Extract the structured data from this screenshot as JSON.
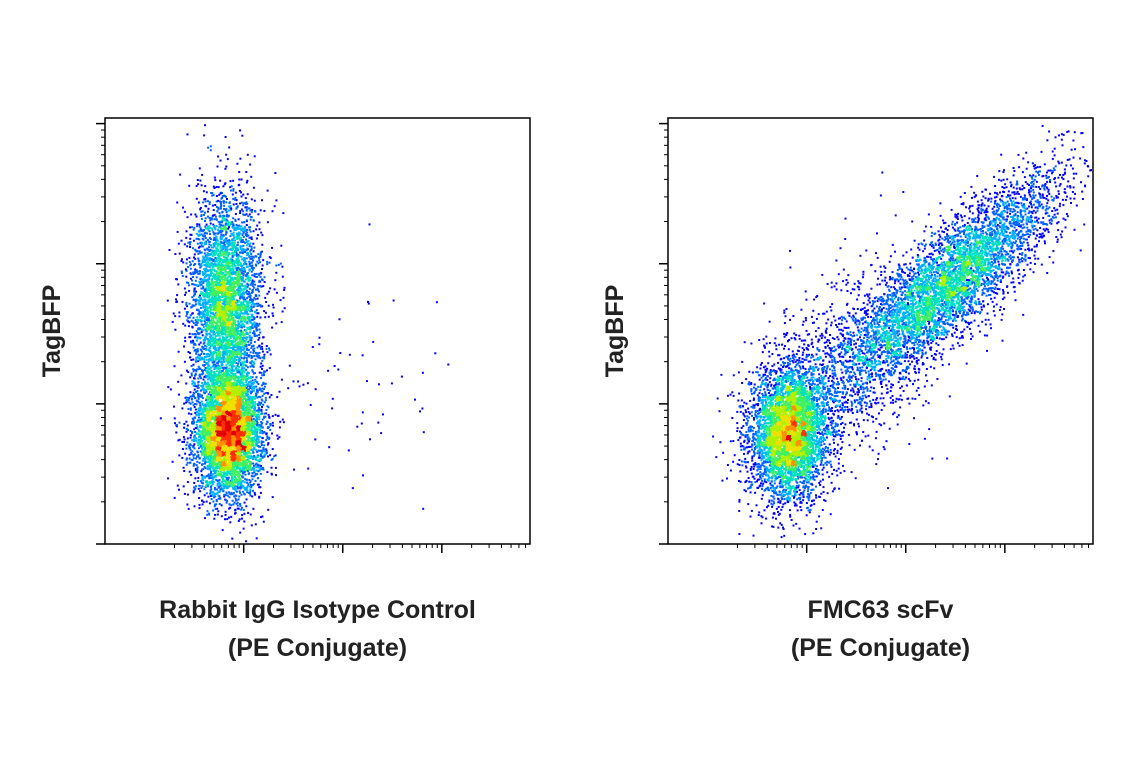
{
  "chart_data": [
    {
      "type": "density",
      "xlabel": [
        "Rabbit IgG Isotype Control",
        "(PE Conjugate)"
      ],
      "ylabel": "TagBFP",
      "xlim": [
        0.6,
        4.89
      ],
      "ylim": [
        0,
        3.04
      ],
      "xticks": [
        2,
        3,
        4
      ],
      "yticks": [
        0,
        1,
        2,
        3
      ],
      "log_scale": true,
      "colormap": [
        "#0000ff",
        "#0060ff",
        "#00b0ff",
        "#00e0c0",
        "#40f060",
        "#b0f000",
        "#f0e000",
        "#ff9000",
        "#ff3000",
        "#e00000"
      ],
      "populations": [
        {
          "x": 1.84,
          "y": 0.8,
          "sx": 0.17,
          "sy": 0.22,
          "rho": 0,
          "n": 5000
        },
        {
          "x": 1.81,
          "y": 1.72,
          "sx": 0.18,
          "sy": 0.38,
          "rho": 0,
          "n": 4200
        },
        {
          "x": 2.9,
          "y": 1.1,
          "sx": 0.55,
          "sy": 0.45,
          "rho": 0,
          "n": 70
        }
      ]
    },
    {
      "type": "density",
      "xlabel": [
        "FMC63 scFv",
        "(PE Conjugate)"
      ],
      "ylabel": "TagBFP",
      "xlim": [
        0.6,
        4.89
      ],
      "ylim": [
        0,
        3.04
      ],
      "xticks": [
        2,
        3,
        4
      ],
      "yticks": [
        0,
        1,
        2,
        3
      ],
      "log_scale": true,
      "colormap": [
        "#0000ff",
        "#0060ff",
        "#00b0ff",
        "#00e0c0",
        "#40f060",
        "#b0f000",
        "#f0e000",
        "#ff9000",
        "#ff3000",
        "#e00000"
      ],
      "populations": [
        {
          "x": 1.82,
          "y": 0.8,
          "sx": 0.2,
          "sy": 0.24,
          "rho": 0.1,
          "n": 4500
        },
        {
          "x": 3.4,
          "y": 1.85,
          "sx": 0.55,
          "sy": 0.38,
          "rho": 0.85,
          "n": 5000
        },
        {
          "x": 2.5,
          "y": 1.35,
          "sx": 0.45,
          "sy": 0.35,
          "rho": 0.3,
          "n": 900
        }
      ]
    }
  ]
}
